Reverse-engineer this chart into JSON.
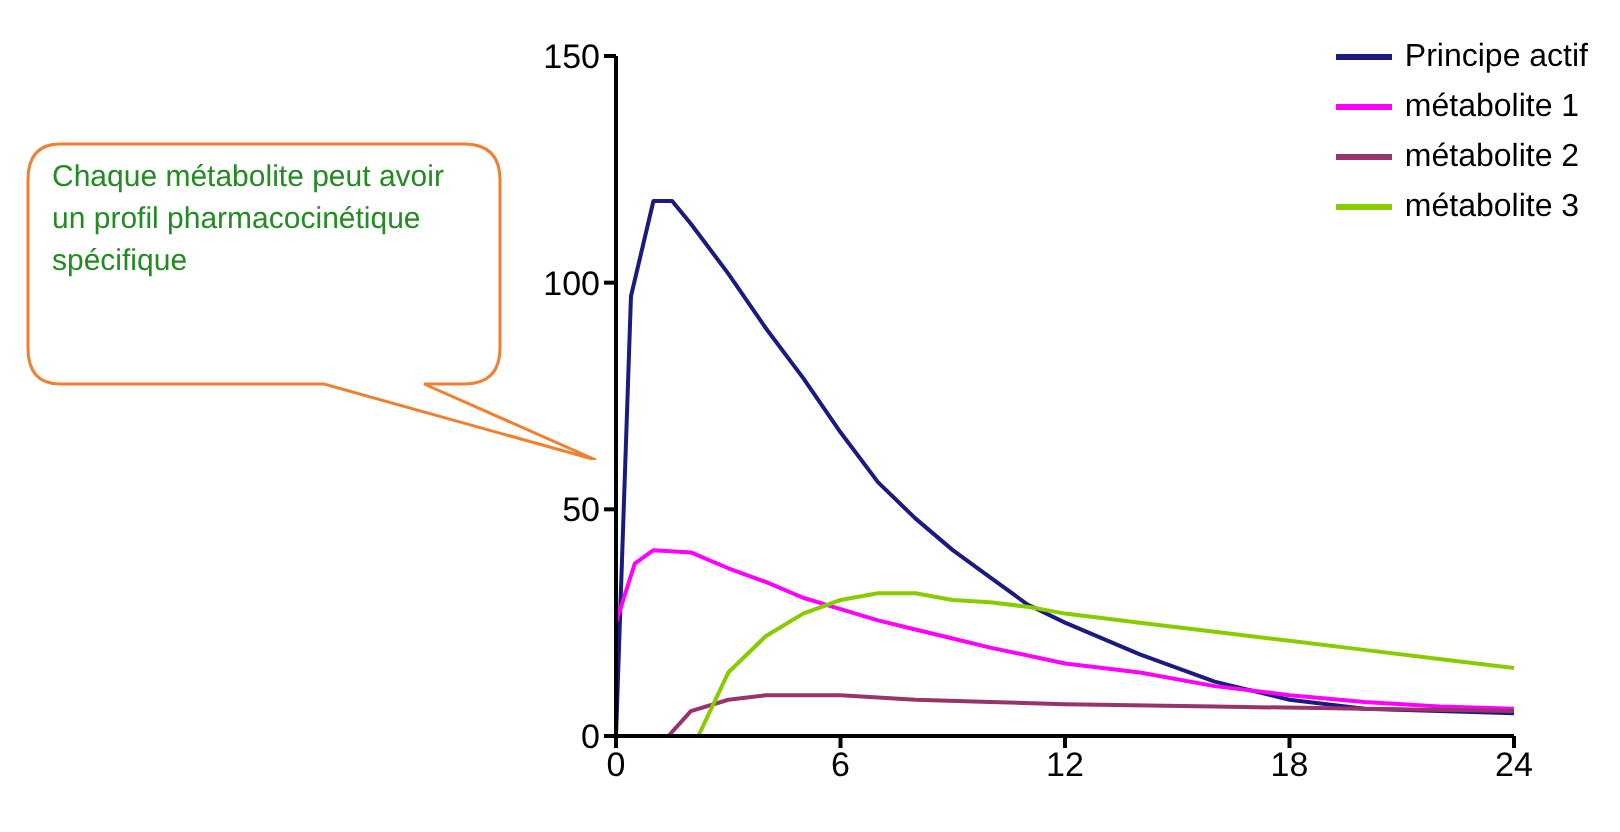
{
  "chart_data": {
    "type": "line",
    "xlim": [
      0,
      24
    ],
    "xticks": [
      0,
      6,
      12,
      18,
      24
    ],
    "ylim": [
      0,
      150
    ],
    "yticks": [
      0,
      50,
      100,
      150
    ],
    "grid": false,
    "legend": "top right",
    "marker": "none",
    "annotations": [
      "Chaque métabolite peut avoir un profil pharmacocinétique spécifique"
    ],
    "series": [
      {
        "name": "Principe actif",
        "color": "#1a1a80",
        "x": [
          0,
          0.4,
          1,
          1.5,
          2,
          3,
          4,
          5,
          6,
          7,
          8,
          9,
          10,
          11,
          12,
          14,
          16,
          18,
          20,
          22,
          24
        ],
        "values": [
          0,
          97,
          118,
          118,
          113,
          102,
          90,
          79,
          67,
          56,
          48,
          41,
          35,
          29,
          25,
          18,
          12,
          8,
          6,
          5.5,
          5
        ]
      },
      {
        "name": "métabolite 1",
        "color": "#ff00ff",
        "x": [
          0,
          0.5,
          1,
          2,
          3,
          4,
          5,
          6,
          7,
          8,
          9,
          10,
          12,
          14,
          16,
          18,
          20,
          22,
          24
        ],
        "values": [
          25,
          38,
          41,
          40.5,
          37,
          34,
          30.5,
          28,
          25.5,
          23.5,
          21.5,
          19.5,
          16,
          14,
          11,
          9,
          7.5,
          6.5,
          6
        ]
      },
      {
        "name": "métabolite 2",
        "color": "#99336b",
        "x": [
          1.4,
          2,
          3,
          4,
          6,
          8,
          10,
          12,
          16,
          20,
          24
        ],
        "values": [
          0,
          5.5,
          8,
          9,
          9,
          8,
          7.5,
          7,
          6.5,
          6,
          5.5
        ]
      },
      {
        "name": "métabolite 3",
        "color": "#88cc00",
        "x": [
          2.2,
          3,
          4,
          5,
          6,
          7,
          8,
          9,
          10,
          11,
          12,
          14,
          16,
          18,
          20,
          22,
          24
        ],
        "values": [
          0,
          14,
          22,
          27,
          30,
          31.5,
          31.5,
          30,
          29.5,
          28.5,
          27,
          25,
          23,
          21,
          19,
          17,
          15
        ]
      }
    ]
  }
}
